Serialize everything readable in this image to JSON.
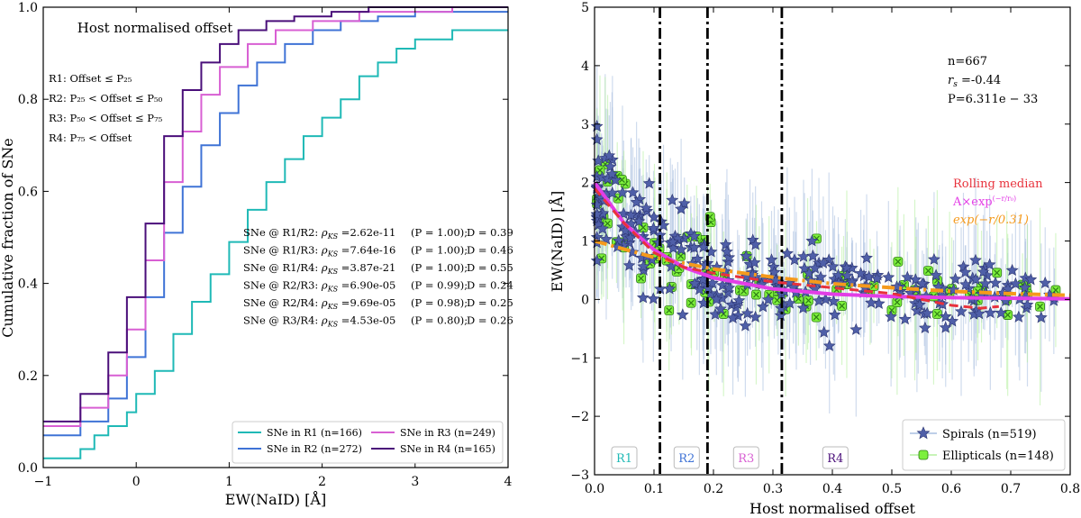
{
  "chart_data": [
    {
      "type": "line",
      "subtype": "step-cdf",
      "title": "Host normalised offset",
      "xlabel": "EW(NaID) [Å]",
      "ylabel": "Cumulative fraction of SNe",
      "xlim": [
        -1,
        4
      ],
      "ylim": [
        0,
        1
      ],
      "xticks": [
        "−1",
        "0",
        "1",
        "2",
        "3",
        "4"
      ],
      "yticks": [
        "0.0",
        "0.2",
        "0.4",
        "0.6",
        "0.8",
        "1.0"
      ],
      "grid": false,
      "region_defs": [
        {
          "text": "R1: Offset ≤ P₂₅",
          "color": "#1fb9b6"
        },
        {
          "text": "R2: P₂₅ < Offset ≤ P₅₀",
          "color": "#3f73d6"
        },
        {
          "text": "R3: P₅₀ < Offset ≤ P₇₅",
          "color": "#c94fd0"
        },
        {
          "text": "R4: P₇₅ < Offset",
          "color": "#4a0f7a"
        }
      ],
      "ks_tests": [
        {
          "pair": "SNe @ R1/R2:",
          "rho": "ρ",
          "sub": "KS",
          "value": " =2.62e-11",
          "p": "(P = 1.00);",
          "d": "D = 0.39"
        },
        {
          "pair": "SNe @ R1/R3:",
          "rho": "ρ",
          "sub": "KS",
          "value": " =7.64e-16",
          "p": "(P = 1.00);",
          "d": "D = 0.46"
        },
        {
          "pair": "SNe @ R1/R4:",
          "rho": "ρ",
          "sub": "KS",
          "value": " =3.87e-21",
          "p": "(P = 1.00);",
          "d": "D = 0.55"
        },
        {
          "pair": "SNe @ R2/R3:",
          "rho": "ρ",
          "sub": "KS",
          "value": " =6.90e-05",
          "p": "(P = 0.99);",
          "d": "D = 0.24"
        },
        {
          "pair": "SNe @ R2/R4:",
          "rho": "ρ",
          "sub": "KS",
          "value": " =9.69e-05",
          "p": "(P = 0.98);",
          "d": "D = 0.25"
        },
        {
          "pair": "SNe @ R3/R4:",
          "rho": "ρ",
          "sub": "KS",
          "value": " =4.53e-05",
          "p": "(P = 0.80);",
          "d": "D = 0.26"
        }
      ],
      "legend_position": "lower-right",
      "series": [
        {
          "name": "SNe in R1 (n=166)",
          "color": "#1fb9b6",
          "x": [
            -1,
            -0.6,
            -0.45,
            -0.3,
            -0.1,
            0.0,
            0.2,
            0.4,
            0.6,
            0.8,
            1.0,
            1.2,
            1.4,
            1.6,
            1.8,
            2.0,
            2.2,
            2.4,
            2.6,
            2.8,
            3.0,
            3.4,
            4.0
          ],
          "y": [
            0.02,
            0.04,
            0.07,
            0.09,
            0.12,
            0.16,
            0.21,
            0.29,
            0.36,
            0.42,
            0.49,
            0.56,
            0.62,
            0.67,
            0.72,
            0.76,
            0.8,
            0.85,
            0.88,
            0.91,
            0.93,
            0.95,
            0.95
          ]
        },
        {
          "name": "SNe in R2 (n=272)",
          "color": "#3f73d6",
          "x": [
            -1,
            -0.6,
            -0.3,
            -0.1,
            0.1,
            0.3,
            0.5,
            0.7,
            0.9,
            1.1,
            1.3,
            1.6,
            1.9,
            2.2,
            2.6,
            3.0,
            4.0
          ],
          "y": [
            0.07,
            0.1,
            0.15,
            0.24,
            0.37,
            0.51,
            0.61,
            0.7,
            0.77,
            0.83,
            0.88,
            0.92,
            0.95,
            0.97,
            0.98,
            0.99,
            0.99
          ]
        },
        {
          "name": "SNe in R3 (n=249)",
          "color": "#d85fd3",
          "x": [
            -1,
            -0.6,
            -0.3,
            -0.1,
            0.1,
            0.3,
            0.5,
            0.7,
            0.9,
            1.2,
            1.5,
            1.9,
            2.4,
            3.4
          ],
          "y": [
            0.09,
            0.13,
            0.2,
            0.3,
            0.45,
            0.62,
            0.73,
            0.81,
            0.87,
            0.92,
            0.95,
            0.97,
            0.99,
            1.0
          ]
        },
        {
          "name": "SNe in R4 (n=165)",
          "color": "#4a0f7a",
          "x": [
            -1,
            -0.6,
            -0.3,
            -0.1,
            0.1,
            0.3,
            0.5,
            0.7,
            0.9,
            1.1,
            1.4,
            1.7,
            2.1,
            2.5
          ],
          "y": [
            0.1,
            0.16,
            0.25,
            0.37,
            0.53,
            0.72,
            0.82,
            0.88,
            0.92,
            0.95,
            0.97,
            0.98,
            0.99,
            1.0
          ]
        }
      ]
    },
    {
      "type": "scatter",
      "xlabel": "Host normalised offset",
      "ylabel": "EW(NaID) [Å]",
      "xlim": [
        0.0,
        0.8
      ],
      "ylim": [
        -3,
        5
      ],
      "xticks": [
        "0.0",
        "0.1",
        "0.2",
        "0.3",
        "0.4",
        "0.5",
        "0.6",
        "0.7",
        "0.8"
      ],
      "yticks": [
        "−3",
        "−2",
        "−1",
        "0",
        "1",
        "2",
        "3",
        "4",
        "5"
      ],
      "grid": false,
      "stats": [
        {
          "text": "n=667"
        },
        {
          "text": "r",
          "sub": "s",
          "rest": " =-0.44"
        },
        {
          "text": "P=6.311e − 33"
        }
      ],
      "fit_labels": [
        {
          "text": "Rolling median",
          "color": "#e8323c"
        },
        {
          "text": "A×exp",
          "sup": "(−r/r₀)",
          "color": "#e33ee6"
        },
        {
          "text": "exp(−r/0.31)",
          "color": "#f59a1c"
        }
      ],
      "region_boundaries": [
        0.11,
        0.19,
        0.315
      ],
      "region_labels": [
        {
          "text": "R1",
          "color": "#1fb9b6"
        },
        {
          "text": "R2",
          "color": "#3f73d6"
        },
        {
          "text": "R3",
          "color": "#d85fd3"
        },
        {
          "text": "R4",
          "color": "#4a0f7a"
        }
      ],
      "legend_position": "lower-right",
      "series": [
        {
          "name": "Spirals (n=519)",
          "marker": "star",
          "color": "#4f5fa8"
        },
        {
          "name": "Ellipticals (n=148)",
          "marker": "x-square",
          "color": "#7df03c"
        }
      ],
      "rolling_median": {
        "x": [
          0.0,
          0.05,
          0.1,
          0.15,
          0.2,
          0.3,
          0.4,
          0.5,
          0.6,
          0.65,
          0.68
        ],
        "y": [
          1.9,
          1.3,
          0.8,
          0.55,
          0.45,
          0.3,
          0.2,
          0.1,
          -0.1,
          -0.15,
          -0.12
        ]
      },
      "exp_fit_A": {
        "x": [
          0.0,
          0.05,
          0.1,
          0.15,
          0.2,
          0.3,
          0.4,
          0.5,
          0.6,
          0.8
        ],
        "y": [
          2.0,
          1.3,
          0.85,
          0.55,
          0.37,
          0.18,
          0.09,
          0.05,
          0.03,
          0.01
        ]
      },
      "exp_fit_031": {
        "x": [
          0.0,
          0.1,
          0.2,
          0.3,
          0.4,
          0.5,
          0.6,
          0.7,
          0.8
        ],
        "y": [
          1.0,
          0.72,
          0.52,
          0.38,
          0.27,
          0.2,
          0.14,
          0.1,
          0.07
        ]
      }
    }
  ]
}
